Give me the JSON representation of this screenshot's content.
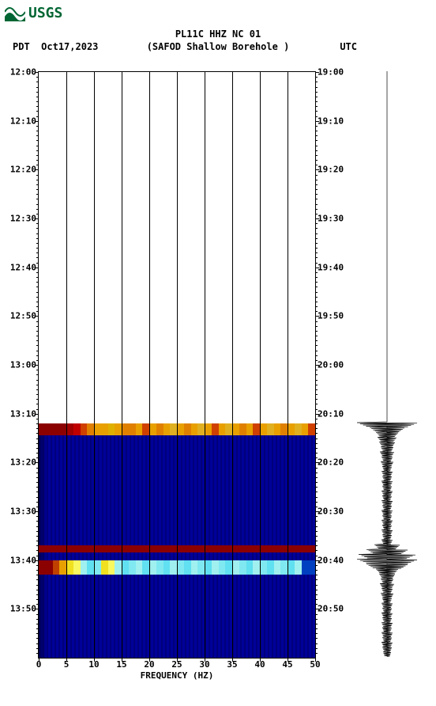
{
  "logo": {
    "text": "USGS",
    "color": "#006633"
  },
  "title": "PL11C HHZ NC 01",
  "subtitle_left": "PDT",
  "subtitle_date": "Oct17,2023",
  "subtitle_center": "(SAFOD Shallow Borehole )",
  "subtitle_right": "UTC",
  "chart": {
    "type": "spectrogram",
    "x_label": "FREQUENCY (HZ)",
    "x_min": 0,
    "x_max": 50,
    "x_tick_step": 5,
    "x_ticks": [
      0,
      5,
      10,
      15,
      20,
      25,
      30,
      35,
      40,
      45,
      50
    ],
    "y_left_labels": [
      "12:00",
      "12:10",
      "12:20",
      "12:30",
      "12:40",
      "12:50",
      "13:00",
      "13:10",
      "13:20",
      "13:30",
      "13:40",
      "13:50"
    ],
    "y_right_labels": [
      "19:00",
      "19:10",
      "19:20",
      "19:30",
      "19:40",
      "19:50",
      "20:00",
      "20:10",
      "20:20",
      "20:30",
      "20:40",
      "20:50"
    ],
    "y_minutes_span": 120,
    "y_major_minutes_step": 10,
    "data_start_minute": 72,
    "bg_color": "#ffffff",
    "blue_fill": "#000099",
    "dark_blue": "#000055",
    "event_bands": [
      {
        "minute": 72,
        "height_min": 2.5,
        "pattern": [
          "#8b0000",
          "#8b0000",
          "#8b0000",
          "#8b0000",
          "#a00000",
          "#c00000",
          "#d04000",
          "#e08000",
          "#e8a000",
          "#e8a000",
          "#e0b000",
          "#e8a000",
          "#e08000",
          "#e08000",
          "#e8a000",
          "#d04000",
          "#e8a000",
          "#e08000",
          "#e8a000",
          "#e0b020",
          "#e8a000",
          "#e08000",
          "#e8a000",
          "#e0b020",
          "#e8a000",
          "#d04000",
          "#e8a000",
          "#e0b020",
          "#e8a000",
          "#e08000",
          "#e8a000",
          "#d04000",
          "#e8a000",
          "#e0b020",
          "#e8a000",
          "#e08000",
          "#e8a000",
          "#e0b020",
          "#e8a000",
          "#d04000"
        ]
      },
      {
        "minute": 97,
        "height_min": 1.5,
        "pattern": [
          "#8b0000",
          "#8b0000",
          "#8b0000",
          "#8b0000",
          "#8b0000",
          "#8b0000",
          "#8b0000",
          "#8b0000",
          "#8b0000",
          "#8b0000",
          "#8b0000",
          "#8b0000",
          "#8b0000",
          "#8b0000",
          "#8b0000",
          "#8b0000",
          "#8b0000",
          "#8b0000",
          "#8b0000",
          "#8b0000",
          "#8b0000",
          "#8b0000",
          "#8b0000",
          "#8b0000",
          "#8b0000",
          "#8b0000",
          "#8b0000",
          "#8b0000",
          "#8b0000",
          "#8b0000",
          "#8b0000",
          "#8b0000",
          "#8b0000",
          "#8b0000",
          "#8b0000",
          "#8b0000",
          "#8b0000",
          "#8b0000",
          "#8b0000",
          "#8b0000"
        ]
      },
      {
        "minute": 100,
        "height_min": 3.0,
        "pattern": [
          "#8b0000",
          "#8b0000",
          "#c04000",
          "#e8a000",
          "#f0e020",
          "#f8f860",
          "#a0f0f0",
          "#60e0f0",
          "#80e8f0",
          "#f0e020",
          "#f8f860",
          "#a0f0f0",
          "#60e0f0",
          "#80e8f0",
          "#a0f0f0",
          "#60e0f0",
          "#a0f0f0",
          "#80e8f0",
          "#60e0f0",
          "#a0f0f0",
          "#80e8f0",
          "#60e0f0",
          "#a0f0f0",
          "#80e8f0",
          "#60e0f0",
          "#a0f0f0",
          "#80e8f0",
          "#60e0f0",
          "#a0f0f0",
          "#80e8f0",
          "#60e0f0",
          "#a0f0f0",
          "#80e8f0",
          "#60e0f0",
          "#a0f0f0",
          "#80e8f0",
          "#60e0f0",
          "#a0f0f0",
          "#0040c0",
          "#0040c0"
        ]
      }
    ],
    "waveform_points": [
      {
        "m": 72,
        "a": 38
      },
      {
        "m": 73,
        "a": 22
      },
      {
        "m": 74,
        "a": 14
      },
      {
        "m": 75,
        "a": 12
      },
      {
        "m": 76,
        "a": 10
      },
      {
        "m": 77,
        "a": 8
      },
      {
        "m": 78,
        "a": 9
      },
      {
        "m": 79,
        "a": 7
      },
      {
        "m": 80,
        "a": 8
      },
      {
        "m": 81,
        "a": 6
      },
      {
        "m": 82,
        "a": 7
      },
      {
        "m": 83,
        "a": 6
      },
      {
        "m": 84,
        "a": 7
      },
      {
        "m": 85,
        "a": 6
      },
      {
        "m": 86,
        "a": 7
      },
      {
        "m": 87,
        "a": 6
      },
      {
        "m": 88,
        "a": 7
      },
      {
        "m": 89,
        "a": 6
      },
      {
        "m": 90,
        "a": 7
      },
      {
        "m": 91,
        "a": 6
      },
      {
        "m": 92,
        "a": 7
      },
      {
        "m": 93,
        "a": 6
      },
      {
        "m": 94,
        "a": 7
      },
      {
        "m": 95,
        "a": 6
      },
      {
        "m": 96,
        "a": 7
      },
      {
        "m": 97,
        "a": 16
      },
      {
        "m": 98,
        "a": 26
      },
      {
        "m": 99,
        "a": 36
      },
      {
        "m": 100,
        "a": 38
      },
      {
        "m": 101,
        "a": 26
      },
      {
        "m": 102,
        "a": 14
      },
      {
        "m": 103,
        "a": 10
      },
      {
        "m": 104,
        "a": 8
      },
      {
        "m": 105,
        "a": 9
      },
      {
        "m": 106,
        "a": 7
      },
      {
        "m": 107,
        "a": 8
      },
      {
        "m": 108,
        "a": 6
      },
      {
        "m": 109,
        "a": 7
      },
      {
        "m": 110,
        "a": 6
      },
      {
        "m": 111,
        "a": 7
      },
      {
        "m": 112,
        "a": 6
      },
      {
        "m": 113,
        "a": 7
      },
      {
        "m": 114,
        "a": 6
      },
      {
        "m": 115,
        "a": 7
      },
      {
        "m": 116,
        "a": 6
      },
      {
        "m": 117,
        "a": 7
      },
      {
        "m": 118,
        "a": 6
      },
      {
        "m": 119,
        "a": 5
      }
    ],
    "title_fontsize": 12,
    "label_fontsize": 11
  }
}
